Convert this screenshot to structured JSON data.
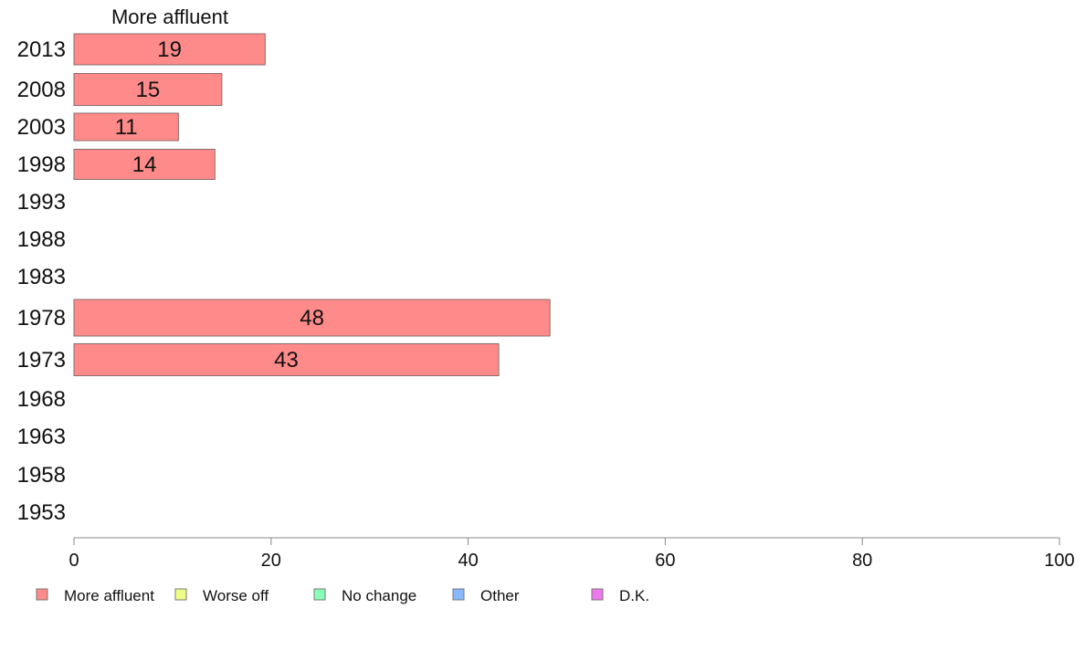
{
  "chart_data": {
    "type": "bar",
    "orientation": "horizontal",
    "title": "More affluent",
    "categories": [
      "2013",
      "2008",
      "2003",
      "1998",
      "1993",
      "1988",
      "1983",
      "1978",
      "1973",
      "1968",
      "1963",
      "1958",
      "1953"
    ],
    "series": [
      {
        "name": "More affluent",
        "color": "#ff8a8a",
        "values": [
          19.4,
          15,
          10.6,
          14.3,
          null,
          null,
          null,
          48.3,
          43.1,
          null,
          null,
          null,
          null
        ],
        "labels": [
          "19",
          "15",
          "11",
          "14",
          "",
          "",
          "",
          "48",
          "43",
          "",
          "",
          "",
          ""
        ]
      }
    ],
    "xlim": [
      0,
      100
    ],
    "xticks": [
      0,
      20,
      40,
      60,
      80,
      100
    ],
    "xtick_labels": [
      "0",
      "20",
      "40",
      "60",
      "80",
      "100"
    ],
    "grid": false,
    "legend": {
      "position": "bottom",
      "items": [
        {
          "label": "More affluent",
          "color": "#ff8a8a"
        },
        {
          "label": "Worse off",
          "color": "#eeff88"
        },
        {
          "label": "No change",
          "color": "#88ffb8"
        },
        {
          "label": "Other",
          "color": "#88b8ff"
        },
        {
          "label": "D.K.",
          "color": "#ee77ee"
        }
      ]
    }
  }
}
